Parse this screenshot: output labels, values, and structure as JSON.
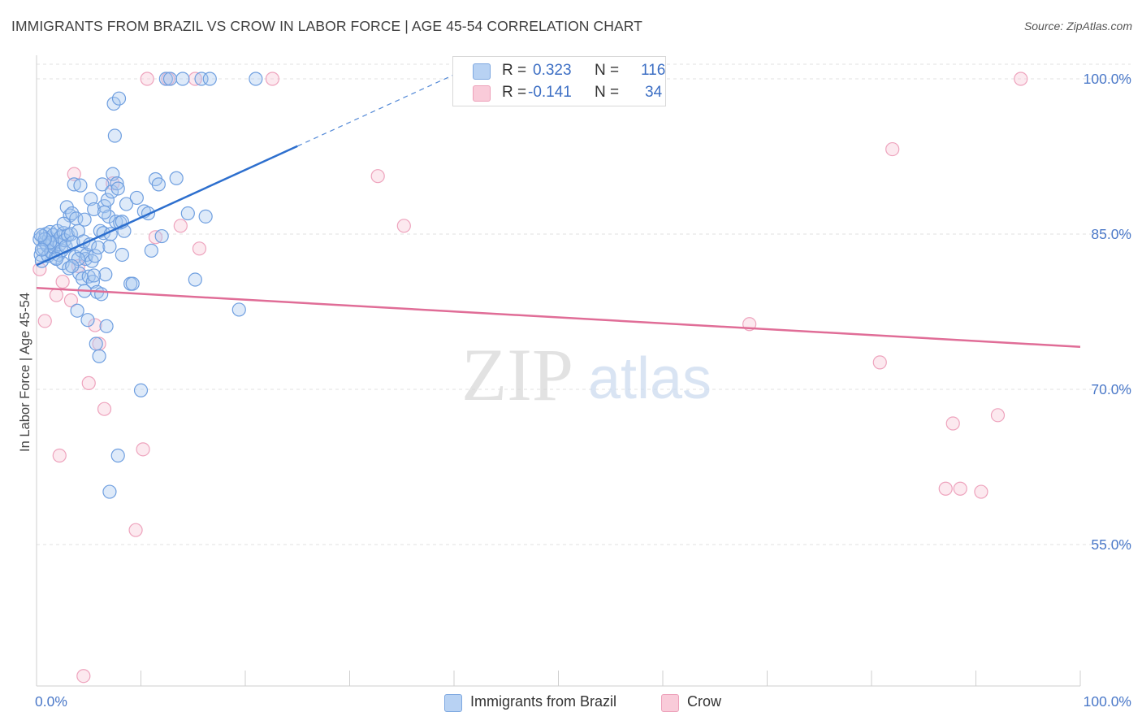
{
  "title": "IMMIGRANTS FROM BRAZIL VS CROW IN LABOR FORCE | AGE 45-54 CORRELATION CHART",
  "source": "Source: ZipAtlas.com",
  "watermark": {
    "zip": "ZIP",
    "atlas": "atlas"
  },
  "legend": {
    "r_label": "R =",
    "n_label": "N =",
    "series": [
      {
        "r": "0.323",
        "n": "116"
      },
      {
        "r": "-0.141",
        "n": "34"
      }
    ]
  },
  "chart_data": {
    "type": "scatter",
    "title": "IMMIGRANTS FROM BRAZIL VS CROW IN LABOR FORCE | AGE 45-54 CORRELATION CHART",
    "xlabel": "",
    "ylabel": "In Labor Force | Age 45-54",
    "xlim": [
      0,
      100
    ],
    "ylim": [
      40,
      102
    ],
    "x_tick_labels": [
      "0.0%",
      "100.0%"
    ],
    "y_ticks": [
      55,
      70,
      85,
      100
    ],
    "y_tick_labels": [
      "55.0%",
      "70.0%",
      "85.0%",
      "100.0%"
    ],
    "grid": true,
    "series": [
      {
        "name": "Immigrants from Brazil",
        "color": "#6ea1e6",
        "line_color": "#2d6fce",
        "r": 0.323,
        "n": 116,
        "trend": {
          "x": [
            0,
            25,
            40
          ],
          "y": [
            82.0,
            93.5,
            100.4
          ]
        },
        "points": [
          [
            0.3,
            84.5
          ],
          [
            0.4,
            83.0
          ],
          [
            0.5,
            82.4
          ],
          [
            0.6,
            84.8
          ],
          [
            0.7,
            83.6
          ],
          [
            0.8,
            84.2
          ],
          [
            0.9,
            85.0
          ],
          [
            1.0,
            83.9
          ],
          [
            1.1,
            82.9
          ],
          [
            1.2,
            84.6
          ],
          [
            1.3,
            85.2
          ],
          [
            1.4,
            83.3
          ],
          [
            1.5,
            84.1
          ],
          [
            1.6,
            84.9
          ],
          [
            1.7,
            83.7
          ],
          [
            1.8,
            82.7
          ],
          [
            1.9,
            84.3
          ],
          [
            2.0,
            85.3
          ],
          [
            2.1,
            83.0
          ],
          [
            2.2,
            84.0
          ],
          [
            2.3,
            84.7
          ],
          [
            2.4,
            83.4
          ],
          [
            2.5,
            82.2
          ],
          [
            2.6,
            85.1
          ],
          [
            2.7,
            84.4
          ],
          [
            2.8,
            83.8
          ],
          [
            2.9,
            87.6
          ],
          [
            3.0,
            84.9
          ],
          [
            3.1,
            81.7
          ],
          [
            3.2,
            86.8
          ],
          [
            3.3,
            85.0
          ],
          [
            3.4,
            87.0
          ],
          [
            3.5,
            84.2
          ],
          [
            3.6,
            89.8
          ],
          [
            3.7,
            82.8
          ],
          [
            3.8,
            86.5
          ],
          [
            3.9,
            77.6
          ],
          [
            4.0,
            85.3
          ],
          [
            4.1,
            81.2
          ],
          [
            4.2,
            89.7
          ],
          [
            4.3,
            83.4
          ],
          [
            4.4,
            80.7
          ],
          [
            4.5,
            84.3
          ],
          [
            4.6,
            86.4
          ],
          [
            4.7,
            82.6
          ],
          [
            4.8,
            83.0
          ],
          [
            4.9,
            76.7
          ],
          [
            5.0,
            80.9
          ],
          [
            5.1,
            84.0
          ],
          [
            5.2,
            88.4
          ],
          [
            5.3,
            82.4
          ],
          [
            5.4,
            80.4
          ],
          [
            5.5,
            87.4
          ],
          [
            5.6,
            82.9
          ],
          [
            5.7,
            74.4
          ],
          [
            5.8,
            79.4
          ],
          [
            5.9,
            83.7
          ],
          [
            6.0,
            73.2
          ],
          [
            6.1,
            85.3
          ],
          [
            6.2,
            79.2
          ],
          [
            6.3,
            89.8
          ],
          [
            6.4,
            85.1
          ],
          [
            6.5,
            87.7
          ],
          [
            6.6,
            81.1
          ],
          [
            6.7,
            76.1
          ],
          [
            6.8,
            88.3
          ],
          [
            6.9,
            86.7
          ],
          [
            7.0,
            83.8
          ],
          [
            7.1,
            85.0
          ],
          [
            7.2,
            89.1
          ],
          [
            7.3,
            90.8
          ],
          [
            7.4,
            97.6
          ],
          [
            7.5,
            94.5
          ],
          [
            7.6,
            86.2
          ],
          [
            7.7,
            89.9
          ],
          [
            7.8,
            89.4
          ],
          [
            7.9,
            98.1
          ],
          [
            8.0,
            86.1
          ],
          [
            8.2,
            83.0
          ],
          [
            8.4,
            85.3
          ],
          [
            8.6,
            87.9
          ],
          [
            9.0,
            80.2
          ],
          [
            9.2,
            80.2
          ],
          [
            9.6,
            88.5
          ],
          [
            10.0,
            69.9
          ],
          [
            10.3,
            87.2
          ],
          [
            10.7,
            87.0
          ],
          [
            11.0,
            83.4
          ],
          [
            11.4,
            90.3
          ],
          [
            11.7,
            89.8
          ],
          [
            12.0,
            84.8
          ],
          [
            12.4,
            100.0
          ],
          [
            12.8,
            100.0
          ],
          [
            13.4,
            90.4
          ],
          [
            14.0,
            100.0
          ],
          [
            14.5,
            87.0
          ],
          [
            15.2,
            80.6
          ],
          [
            15.8,
            100.0
          ],
          [
            16.2,
            86.7
          ],
          [
            16.6,
            100.0
          ],
          [
            19.4,
            77.7
          ],
          [
            21.0,
            100.0
          ],
          [
            8.2,
            86.2
          ],
          [
            6.5,
            87.1
          ],
          [
            7.0,
            60.1
          ],
          [
            7.8,
            63.6
          ],
          [
            4.0,
            82.6
          ],
          [
            3.4,
            81.9
          ],
          [
            2.6,
            86.0
          ],
          [
            1.9,
            82.6
          ],
          [
            1.3,
            84.2
          ],
          [
            0.8,
            84.5
          ],
          [
            0.5,
            83.5
          ],
          [
            0.4,
            84.9
          ],
          [
            5.5,
            81.0
          ],
          [
            4.6,
            79.5
          ]
        ]
      },
      {
        "name": "Crow",
        "color": "#f19ab6",
        "line_color": "#e06d97",
        "r": -0.141,
        "n": 34,
        "trend": {
          "x": [
            0,
            100
          ],
          "y": [
            79.8,
            74.1
          ]
        },
        "points": [
          [
            0.3,
            81.6
          ],
          [
            0.8,
            76.6
          ],
          [
            1.9,
            79.1
          ],
          [
            2.2,
            63.6
          ],
          [
            2.5,
            80.4
          ],
          [
            3.3,
            78.6
          ],
          [
            3.6,
            90.8
          ],
          [
            4.0,
            81.9
          ],
          [
            4.5,
            42.3
          ],
          [
            5.0,
            70.6
          ],
          [
            5.6,
            76.2
          ],
          [
            6.0,
            74.4
          ],
          [
            6.5,
            68.1
          ],
          [
            7.3,
            89.9
          ],
          [
            9.5,
            56.4
          ],
          [
            10.2,
            64.2
          ],
          [
            10.6,
            100.0
          ],
          [
            11.4,
            84.7
          ],
          [
            12.6,
            100.0
          ],
          [
            13.8,
            85.8
          ],
          [
            15.2,
            100.0
          ],
          [
            15.6,
            83.6
          ],
          [
            22.6,
            100.0
          ],
          [
            32.7,
            90.6
          ],
          [
            35.2,
            85.8
          ],
          [
            68.3,
            76.3
          ],
          [
            80.8,
            72.6
          ],
          [
            82.0,
            93.2
          ],
          [
            87.1,
            60.4
          ],
          [
            87.8,
            66.7
          ],
          [
            88.5,
            60.4
          ],
          [
            90.5,
            60.1
          ],
          [
            92.1,
            67.5
          ],
          [
            94.3,
            100.0
          ]
        ]
      }
    ]
  }
}
